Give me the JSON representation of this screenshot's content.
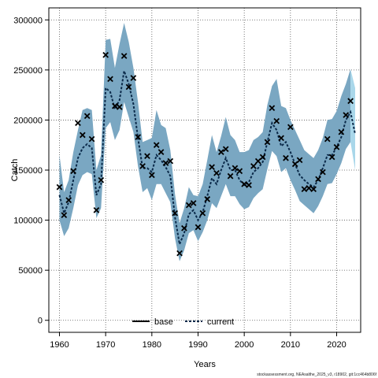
{
  "chart_data": {
    "type": "line",
    "title": "",
    "xlabel": "Years",
    "ylabel": "Catch",
    "xlim": [
      1957.7,
      2025.2
    ],
    "ylim": [
      -12000,
      312000
    ],
    "x_ticks": [
      1960,
      1970,
      1980,
      1990,
      2000,
      2010,
      2020
    ],
    "y_ticks": [
      0,
      50000,
      100000,
      150000,
      200000,
      250000,
      300000
    ],
    "x_tick_labels": [
      "1960",
      "1970",
      "1980",
      "1990",
      "2000",
      "2010",
      "2020"
    ],
    "y_tick_labels": [
      "0",
      "50000",
      "100000",
      "150000",
      "200000",
      "250000",
      "300000"
    ],
    "grid": true,
    "legend": {
      "position": "bottom-center",
      "entries": [
        "base",
        "current"
      ]
    },
    "colors": {
      "band": "#7aa7c2",
      "band_end": "#a9d7ea",
      "line": "#0b2a4a",
      "points": "#000000"
    },
    "years": [
      1960,
      1961,
      1962,
      1963,
      1964,
      1965,
      1966,
      1967,
      1968,
      1969,
      1970,
      1971,
      1972,
      1973,
      1974,
      1975,
      1976,
      1977,
      1978,
      1979,
      1980,
      1981,
      1982,
      1983,
      1984,
      1985,
      1986,
      1987,
      1988,
      1989,
      1990,
      1991,
      1992,
      1993,
      1994,
      1995,
      1996,
      1997,
      1998,
      1999,
      2000,
      2001,
      2002,
      2003,
      2004,
      2005,
      2006,
      2007,
      2008,
      2009,
      2010,
      2011,
      2012,
      2013,
      2014,
      2015,
      2016,
      2017,
      2018,
      2019,
      2020,
      2021,
      2022,
      2023,
      2024
    ],
    "series": [
      {
        "name": "current",
        "values": [
          125000,
          107000,
          118000,
          140000,
          162000,
          172000,
          176000,
          172000,
          125000,
          136000,
          232000,
          228000,
          211000,
          220000,
          249000,
          236000,
          216000,
          182000,
          152000,
          152000,
          148000,
          165000,
          160000,
          153000,
          144000,
          103000,
          76000,
          87000,
          106000,
          110000,
          100000,
          108000,
          124000,
          142000,
          136000,
          150000,
          162000,
          150000,
          150000,
          140000,
          135000,
          138000,
          148000,
          152000,
          158000,
          178000,
          197000,
          190000,
          174000,
          178000,
          168000,
          156000,
          145000,
          140000,
          136000,
          133000,
          140000,
          152000,
          165000,
          165000,
          173000,
          183000,
          200000,
          208000,
          186000
        ],
        "lower": [
          100000,
          84000,
          92000,
          112000,
          135000,
          145000,
          148000,
          146000,
          102000,
          112000,
          192000,
          198000,
          180000,
          190000,
          218000,
          203000,
          188000,
          154000,
          128000,
          132000,
          120000,
          136000,
          136000,
          127000,
          118000,
          82000,
          59000,
          70000,
          87000,
          90000,
          79000,
          88000,
          100000,
          117000,
          112000,
          124000,
          136000,
          124000,
          124000,
          116000,
          111000,
          113000,
          122000,
          127000,
          131000,
          151000,
          169000,
          164000,
          148000,
          152000,
          140000,
          130000,
          119000,
          115000,
          111000,
          107000,
          114000,
          124000,
          136000,
          137000,
          146000,
          157000,
          171000,
          178000,
          150000
        ],
        "upper": [
          165000,
          128000,
          140000,
          168000,
          190000,
          210000,
          212000,
          210000,
          150000,
          165000,
          280000,
          281000,
          252000,
          276000,
          297000,
          278000,
          252000,
          218000,
          178000,
          180000,
          182000,
          210000,
          195000,
          192000,
          170000,
          126000,
          97000,
          112000,
          133000,
          125000,
          124000,
          136000,
          160000,
          185000,
          168000,
          184000,
          203000,
          185000,
          180000,
          168000,
          168000,
          170000,
          180000,
          183000,
          188000,
          215000,
          234000,
          241000,
          214000,
          212000,
          200000,
          190000,
          180000,
          170000,
          166000,
          162000,
          170000,
          182000,
          200000,
          201000,
          209000,
          224000,
          236000,
          251000,
          232000
        ],
        "observed": [
          133000,
          105000,
          120000,
          149000,
          197000,
          185000,
          204000,
          181000,
          110000,
          140000,
          265000,
          241000,
          214000,
          213000,
          264000,
          233000,
          242000,
          183000,
          154000,
          164000,
          145000,
          175000,
          168000,
          157000,
          159000,
          107000,
          67000,
          92000,
          115000,
          117000,
          93000,
          107000,
          121000,
          153000,
          147000,
          168000,
          171000,
          144000,
          152000,
          149000,
          136000,
          135000,
          154000,
          159000,
          163000,
          178000,
          212000,
          199000,
          182000,
          162000,
          193000,
          156000,
          160000,
          131000,
          132000,
          131000,
          141000,
          148000,
          181000,
          163000,
          173000,
          188000,
          205000,
          219000,
          null
        ]
      }
    ]
  },
  "footnote": "stockassessment.org, NEAsalthe_2025_v3, r18902, git:1cc464b806f"
}
